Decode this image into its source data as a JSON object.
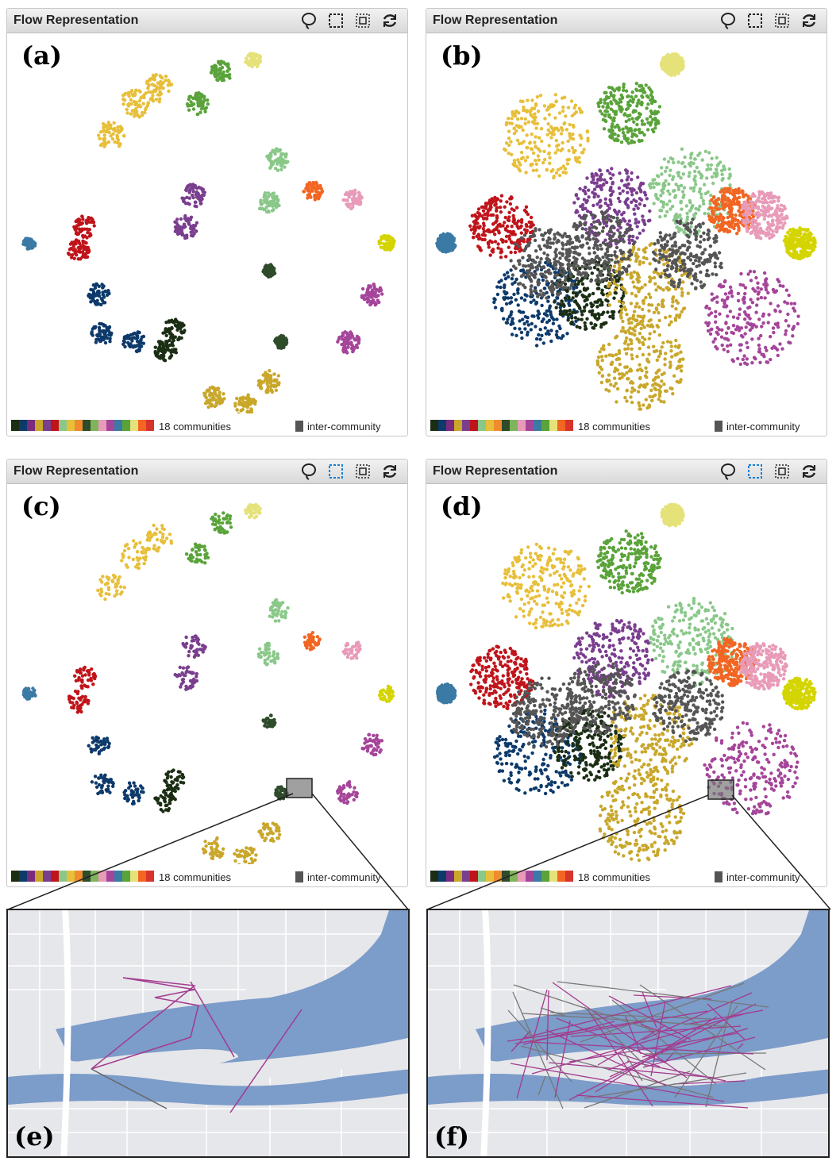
{
  "panels": [
    {
      "title": "Flow Representation",
      "label": "(a)",
      "communities_text": "18 communities",
      "inter_text": "inter-community"
    },
    {
      "title": "Flow Representation",
      "label": "(b)",
      "communities_text": "18 communities",
      "inter_text": "inter-community"
    },
    {
      "title": "Flow Representation",
      "label": "(c)",
      "communities_text": "18 communities",
      "inter_text": "inter-community"
    },
    {
      "title": "Flow Representation",
      "label": "(d)",
      "communities_text": "18 communities",
      "inter_text": "inter-community"
    }
  ],
  "maps": [
    {
      "label": "(e)"
    },
    {
      "label": "(f)"
    }
  ],
  "toolbar_icons": [
    "lasso-icon",
    "rect-select-icon",
    "box-select-icon",
    "refresh-icon"
  ],
  "palette": [
    "#1b2e14",
    "#0d3a6b",
    "#7b2b7d",
    "#c8a72b",
    "#7a3e8f",
    "#c0141b",
    "#8ac88a",
    "#e7bf3a",
    "#f08c2e",
    "#2e4b2a",
    "#7fb45c",
    "#e89bb8",
    "#a5459a",
    "#3a7aa4",
    "#5aa33a",
    "#e6e27a",
    "#f26522",
    "#d7342c"
  ],
  "inter_color": "#555555"
}
